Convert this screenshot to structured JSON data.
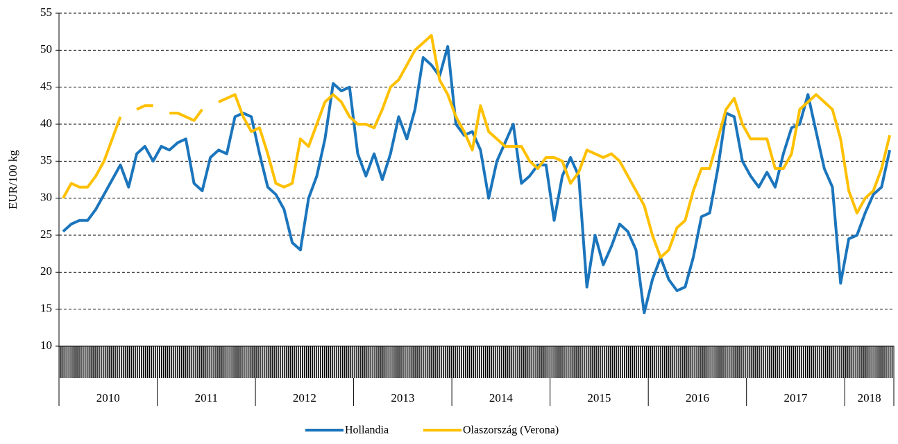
{
  "chart_data": {
    "type": "line",
    "y_label": "EUR/100 kg",
    "categories": [
      "2010",
      "2010",
      "2010",
      "2010",
      "2010",
      "2010",
      "2010",
      "2010",
      "2010",
      "2010",
      "2010",
      "2010",
      "2011",
      "2011",
      "2011",
      "2011",
      "2011",
      "2011",
      "2011",
      "2011",
      "2011",
      "2011",
      "2011",
      "2011",
      "2012",
      "2012",
      "2012",
      "2012",
      "2012",
      "2012",
      "2012",
      "2012",
      "2012",
      "2012",
      "2012",
      "2012",
      "2013",
      "2013",
      "2013",
      "2013",
      "2013",
      "2013",
      "2013",
      "2013",
      "2013",
      "2013",
      "2013",
      "2013",
      "2014",
      "2014",
      "2014",
      "2014",
      "2014",
      "2014",
      "2014",
      "2014",
      "2014",
      "2014",
      "2014",
      "2014",
      "2015",
      "2015",
      "2015",
      "2015",
      "2015",
      "2015",
      "2015",
      "2015",
      "2015",
      "2015",
      "2015",
      "2015",
      "2016",
      "2016",
      "2016",
      "2016",
      "2016",
      "2016",
      "2016",
      "2016",
      "2016",
      "2016",
      "2016",
      "2016",
      "2017",
      "2017",
      "2017",
      "2017",
      "2017",
      "2017",
      "2017",
      "2017",
      "2017",
      "2017",
      "2017",
      "2017",
      "2018",
      "2018",
      "2018",
      "2018",
      "2018",
      "2018"
    ],
    "series": [
      {
        "name": "Hollandia",
        "color": "#1b75bc",
        "values": [
          25.5,
          26.5,
          27,
          27,
          28.5,
          30.5,
          32.5,
          34.5,
          31.5,
          36,
          37,
          35,
          37,
          36.5,
          37.5,
          38,
          32,
          31,
          35.5,
          36.5,
          36,
          41,
          41.5,
          41,
          36,
          31.5,
          30.5,
          28.5,
          24,
          23,
          30,
          33,
          38,
          45.5,
          44.5,
          45,
          36,
          33,
          36,
          32.5,
          36,
          41,
          38,
          42,
          49,
          48,
          46.5,
          50.5,
          40,
          38.5,
          39,
          36.5,
          30,
          35,
          37.5,
          40,
          32,
          33,
          34.5,
          34.5,
          27,
          33,
          35.5,
          33,
          18,
          25,
          21,
          23.5,
          26.5,
          25.5,
          23,
          14.5,
          19,
          22,
          19,
          17.5,
          18,
          22,
          27.5,
          28,
          34,
          41.5,
          41,
          35,
          33,
          31.5,
          33.5,
          31.5,
          36,
          39.5,
          40,
          44,
          39,
          34,
          31.5,
          18.5,
          24.5,
          25,
          28,
          30.5,
          31.5,
          36.5
        ]
      },
      {
        "name": "Olaszország (Verona)",
        "color": "#ffc000",
        "values": [
          30,
          32,
          31.5,
          31.5,
          33,
          35,
          38,
          41,
          null,
          42,
          42.5,
          42.5,
          null,
          41.5,
          41.5,
          41,
          40.5,
          42,
          null,
          43,
          43.5,
          44,
          41,
          39,
          39.5,
          36,
          32,
          31.5,
          32,
          38,
          37,
          40,
          43,
          44,
          43,
          41,
          40,
          40,
          39.5,
          42,
          45,
          46,
          48,
          50,
          51,
          52,
          46,
          44,
          41,
          39,
          36.5,
          42.5,
          39,
          38,
          37,
          37,
          37,
          35,
          34,
          35.5,
          35.5,
          35,
          32,
          33.5,
          36.5,
          36,
          35.5,
          36,
          35,
          33,
          31,
          29,
          25,
          22,
          23,
          26,
          27,
          31,
          34,
          34,
          38,
          42,
          43.5,
          40,
          38,
          38,
          38,
          34,
          34,
          36,
          42,
          43,
          44,
          43,
          42,
          38,
          31,
          28,
          30,
          31,
          34,
          38.5
        ]
      }
    ],
    "ylim": [
      10,
      55
    ],
    "yticks": [
      10,
      15,
      20,
      25,
      30,
      35,
      40,
      45,
      50,
      55
    ],
    "grid": true
  }
}
